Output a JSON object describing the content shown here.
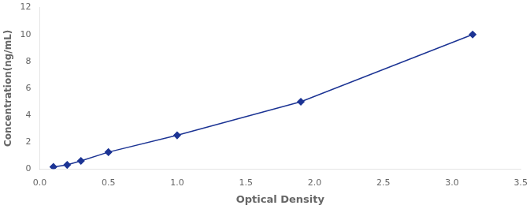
{
  "chart_data": {
    "type": "line",
    "x": [
      0.1,
      0.2,
      0.3,
      0.5,
      1.0,
      1.9,
      3.15
    ],
    "values": [
      0.15,
      0.3,
      0.6,
      1.25,
      2.5,
      5.0,
      10.0
    ],
    "xlabel": "Optical Density",
    "ylabel": "Concentration(ng/mL)",
    "xlim": [
      0.0,
      3.5
    ],
    "ylim": [
      0,
      12
    ],
    "xticks": [
      {
        "value": 0.0,
        "label": "0.0"
      },
      0.5,
      {
        "value": 1.0,
        "label": "1.0"
      },
      1.5,
      {
        "value": 2.0,
        "label": "2.0"
      },
      2.5,
      {
        "value": 3.0,
        "label": "3.0"
      },
      3.5
    ],
    "yticks": [
      0,
      2,
      4,
      6,
      8,
      10,
      12
    ],
    "color": "#1c3494",
    "marker": "diamond",
    "grid": false
  }
}
